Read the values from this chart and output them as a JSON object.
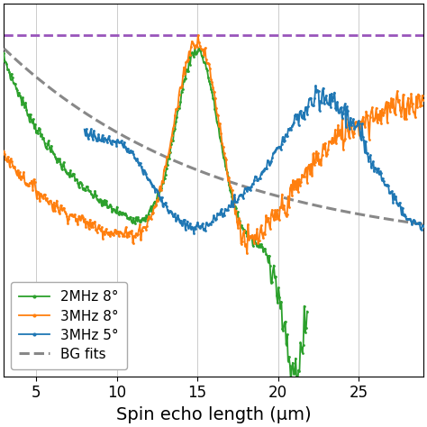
{
  "xlabel": "Spin echo length (μm)",
  "xlim": [
    3.0,
    29.0
  ],
  "ylim": [
    -0.55,
    1.12
  ],
  "xticks": [
    5,
    10,
    15,
    20,
    25
  ],
  "purple_line_y": 0.98,
  "colors": {
    "green": "#2ca02c",
    "orange": "#ff7f0e",
    "blue": "#1f77b4",
    "gray_dashed": "#888888",
    "purple_dashed": "#9955bb"
  },
  "legend_labels": [
    "2MHz 8°",
    "3MHz 8°",
    "3MHz 5°",
    "BG fits"
  ]
}
